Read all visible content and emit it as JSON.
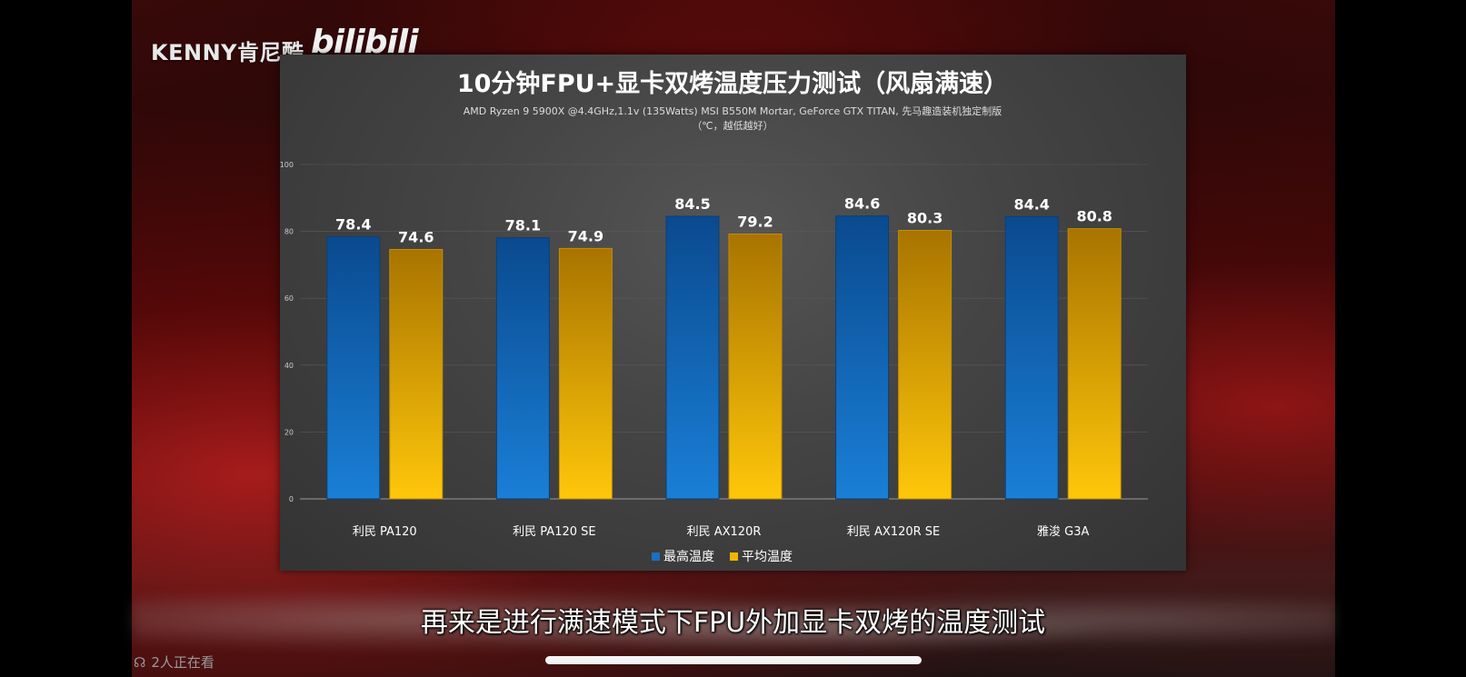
{
  "watermark": {
    "channel": "KENNY肯尼酷",
    "platform": "bilibili"
  },
  "chart_data": {
    "type": "bar",
    "title": "10分钟FPU+显卡双烤温度压力测试（风扇满速）",
    "subtitle_line1": "AMD Ryzen 9 5900X @4.4GHz,1.1v (135Watts) MSI B550M Mortar, GeForce GTX TITAN, 先马趣造装机独定制版",
    "subtitle_line2": "（℃，越低越好）",
    "categories": [
      "利民 PA120",
      "利民 PA120 SE",
      "利民 AX120R",
      "利民 AX120R SE",
      "雅浚 G3A"
    ],
    "series": [
      {
        "name": "最高温度",
        "values": [
          78.4,
          78.1,
          84.5,
          84.6,
          84.4
        ],
        "color_top": "#0a4a8f",
        "color_bottom": "#1a7fd6"
      },
      {
        "name": "平均温度",
        "values": [
          74.6,
          74.9,
          79.2,
          80.3,
          80.8
        ],
        "color_top": "#a87400",
        "color_bottom": "#ffc70a"
      }
    ],
    "ylim": [
      0,
      100
    ],
    "yticks": [
      0,
      20,
      40,
      60,
      80,
      100
    ],
    "grid": true,
    "legend_position": "bottom-center"
  },
  "caption": "再来是进行满速模式下FPU外加显卡双烤的温度测试",
  "viewer": {
    "icon": "viewers-icon",
    "text": "2人正在看"
  }
}
